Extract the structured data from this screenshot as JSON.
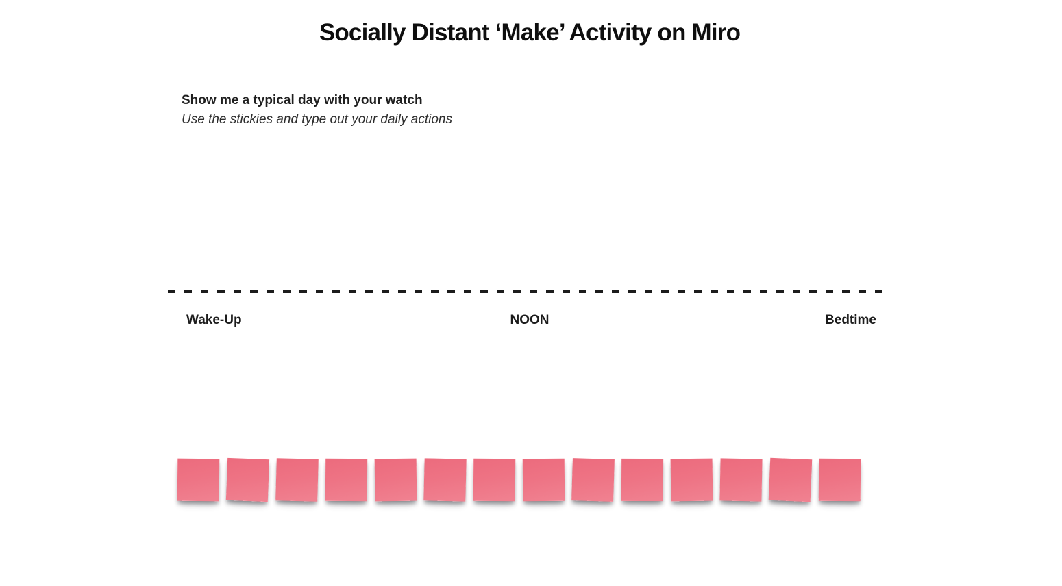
{
  "board": {
    "title": "Socially Distant ‘Make’ Activity on Miro"
  },
  "prompt": {
    "heading": "Show me a typical day with your watch",
    "subheading": "Use the stickies and type out your daily actions"
  },
  "timeline": {
    "wake_up": "Wake-Up",
    "noon": "NOON",
    "bedtime": "Bedtime"
  },
  "stickies": {
    "count": 14,
    "items": [
      {
        "text": ""
      },
      {
        "text": ""
      },
      {
        "text": ""
      },
      {
        "text": ""
      },
      {
        "text": ""
      },
      {
        "text": ""
      },
      {
        "text": ""
      },
      {
        "text": ""
      },
      {
        "text": ""
      },
      {
        "text": ""
      },
      {
        "text": ""
      },
      {
        "text": ""
      },
      {
        "text": ""
      },
      {
        "text": ""
      }
    ]
  },
  "colors": {
    "background": "#ffffff",
    "text": "#1c1c1c",
    "sticky": "#ee7384",
    "timeline_line": "#1c1c1c"
  }
}
